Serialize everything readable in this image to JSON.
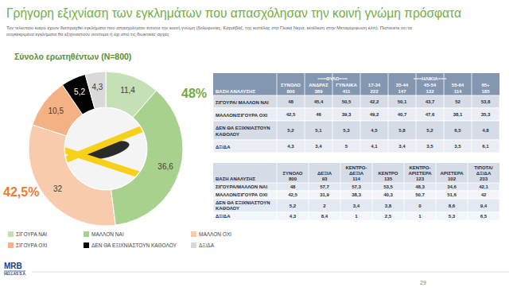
{
  "chart_data": {
    "type": "pie",
    "title": "Γρήγορη εξιχνίαση των εγκλημάτων που απασχόλησαν την κοινή γνώμη πρόσφατα",
    "subtitle": [
      "Τον τελευταίο καιρό έχουν διαπραχθεί εγκλήματα που απασχόλησαν έντονα την κοινή γνώμη (δολοφονίες, Καραϊβάζ, της κοπέλας στα Γλυκά Νερά, εκτέλεση στην Μεταμόρφωση κλπ). Πιστεύετε ότι τα",
      "συγκεκριμένα εγκλήματα θα εξιχνιαστούν σύντομα ή όχι από τις διωκτικές αρχές"
    ],
    "annotations": [
      "Σύνολο ερωτηθέντων (Ν=800)",
      "48%",
      "42,5%"
    ],
    "categories": [
      "ΣΙΓΟΥΡΑ ΝΑΙ",
      "ΜΑΛΛΟΝ ΝΑΙ",
      "ΜΑΛΛΟΝ ΟΧΙ",
      "ΣΙΓΟΥΡΑ ΟΧΙ",
      "ΔΕΝ ΘΑ ΕΞΙΧΝΙΑΣΤΟΥΝ ΚΑΘΟΛΟΥ",
      "ΔΞ/ΔΑ"
    ],
    "values": [
      11.4,
      36.6,
      32,
      10.5,
      5.2,
      4.3
    ],
    "value_labels": [
      "11,4",
      "36,6",
      "32",
      "10,5",
      "5,2",
      "4,3"
    ],
    "colors": [
      "#c5e0b4",
      "#a9d18e",
      "#f8cbad",
      "#f4b183",
      "#000000",
      "#d9d9d9"
    ],
    "data_labels": true,
    "legend": "bottom"
  },
  "tables": [
    {
      "header": [
        {
          "columns": [
            {
              "name": [
                "ΣΥΝΟΛΟ"
              ],
              "base": "800"
            }
          ]
        },
        {
          "group": "===ΦΥΛΟ===",
          "columns": [
            {
              "name": [
                "ΑΝΔΡΑΣ"
              ],
              "base": "389"
            },
            {
              "name": [
                "ΓΥΝΑΙΚΑ"
              ],
              "base": "411"
            }
          ]
        },
        {
          "group": "===ΗΛΙΚΙΑ===",
          "columns": [
            {
              "name": [
                "17-34"
              ],
              "base": "222"
            },
            {
              "name": [
                "35-44"
              ],
              "base": "147"
            },
            {
              "name": [
                "45-54"
              ],
              "base": "132"
            },
            {
              "name": [
                "55-64"
              ],
              "base": "114"
            },
            {
              "name": [
                "65+"
              ],
              "base": "185"
            }
          ]
        }
      ],
      "base_label": "ΒΑΣΗ ΑΝΑΛΥΣΗΣ",
      "rows": [
        {
          "label": [
            "ΣΙΓΟΥΡΑ/ ΜΑΛΛΟΝ ΝΑΙ"
          ],
          "cells": [
            "48",
            "45,4",
            "50,5",
            "42,2",
            "50,1",
            "43,7",
            "52",
            "53,8"
          ]
        },
        {
          "label": [
            "ΜΑΛΛΟΝ/ΣΙΓΟΥΡΑ ΟΧΙ"
          ],
          "cells": [
            "42,5",
            "46",
            "39,3",
            "49,2",
            "40,7",
            "47,6",
            "38,1",
            "35,3"
          ]
        },
        {
          "label": [
            "ΔΕΝ ΘΑ ΕΞΙΧΝΙΑΣΤΟΥΝ",
            "ΚΑΘΟΛΟΥ"
          ],
          "cells": [
            "5,2",
            "5,1",
            "5,3",
            "4,5",
            "5,8",
            "5,2",
            "6,5",
            "4,8"
          ]
        },
        {
          "label": [
            "ΔΞ/ΔΑ"
          ],
          "cells": [
            "4,3",
            "3,4",
            "5",
            "4,1",
            "3,4",
            "3,5",
            "3,5",
            "6,1"
          ]
        }
      ]
    },
    {
      "header": [
        {
          "columns": [
            {
              "name": [
                "ΣΥΝΟΛΟ"
              ],
              "base": "800"
            },
            {
              "name": [
                "ΔΕΞΙΑ"
              ],
              "base": "93"
            },
            {
              "name": [
                "ΚΕΝΤΡΟ-",
                "ΔΕΞΙΑ"
              ],
              "base": "114"
            },
            {
              "name": [
                "ΚΕΝΤΡΟ"
              ],
              "base": "135"
            },
            {
              "name": [
                "ΚΕΝΤΡΟ-",
                "ΑΡΙΣΤΕΡΑ"
              ],
              "base": "123"
            },
            {
              "name": [
                "ΑΡΙΣΤΕΡΑ"
              ],
              "base": "102"
            },
            {
              "name": [
                "ΤΙΠΟΤΑ/",
                "ΔΞ/ΔΑ"
              ],
              "base": "233"
            }
          ]
        }
      ],
      "base_label": "ΒΑΣΗ ΑΝΑΛΥΣΗΣ",
      "rows": [
        {
          "label": [
            "ΣΙΓΟΥΡΑ/ΜΑΛΛΟΝ ΝΑΙ"
          ],
          "cells": [
            "48",
            "57,7",
            "57,3",
            "53,5",
            "48,3",
            "34,6",
            "42,1"
          ]
        },
        {
          "label": [
            "ΜΑΛΛΟΝ/ΣΙΓΟΥΡΑ ΟΧΙ"
          ],
          "cells": [
            "42,5",
            "31,9",
            "38,3",
            "40,3",
            "50,7",
            "51,6",
            "42"
          ]
        },
        {
          "label": [
            "ΔΕΝ ΘΑ ΕΞΙΧΝΙΑΣΤΟΥΝ",
            "ΚΑΘΟΛΟΥ"
          ],
          "cells": [
            "5,2",
            "2",
            "3,4",
            "3,8",
            "0",
            "8,6",
            "9,4"
          ]
        },
        {
          "label": [
            "ΔΞ/ΔΑ"
          ],
          "cells": [
            "4,3",
            "8,4",
            "1",
            "2,5",
            "1",
            "5,3",
            "6,5"
          ]
        }
      ]
    }
  ],
  "page_number": "29",
  "logo": [
    "MRB",
    "HELLAS S.A."
  ]
}
